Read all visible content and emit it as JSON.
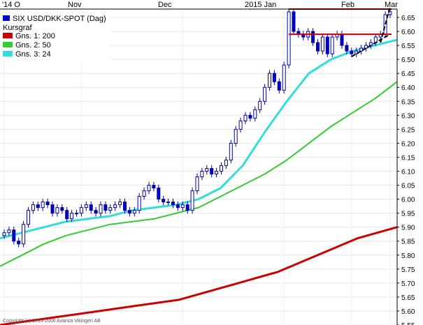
{
  "chart_data": {
    "type": "line",
    "title": "SIX USD/DKK-SPOT (Dag)",
    "legend_heading": "Kursgraf",
    "legend_placement": "top-left",
    "copyright": "Copyright (c) 1993-2006 Avanza Vikingen AB",
    "x_labels": [
      "'14 O",
      "Nov",
      "Dec",
      "2015 Jan",
      "Feb",
      "Mar"
    ],
    "ylim": [
      5.55,
      6.68
    ],
    "y_ticks": [
      "6.65",
      "6.60",
      "6.55",
      "6.50",
      "6.45",
      "6.40",
      "6.35",
      "6.30",
      "6.25",
      "6.20",
      "6.15",
      "6.10",
      "6.05",
      "6.00",
      "5.95",
      "5.90",
      "5.85",
      "5.80",
      "5.75",
      "5.70",
      "5.65",
      "5.60",
      "5.55"
    ],
    "grid": true,
    "colors": {
      "price_up": "#ffffff",
      "price_down": "#0000cc",
      "gns1": "#cc0000",
      "gns2": "#33cc33",
      "gns3": "#33dddd",
      "hline": "#cc0000",
      "trend": "#000000"
    },
    "series": [
      {
        "name": "SIX USD/DKK-SPOT (Dag)",
        "kind": "price",
        "close": [
          5.88,
          5.89,
          5.85,
          5.84,
          5.91,
          5.96,
          5.98,
          5.97,
          5.99,
          5.98,
          5.95,
          5.97,
          5.96,
          5.93,
          5.95,
          5.95,
          5.97,
          5.98,
          5.96,
          5.95,
          5.98,
          5.96,
          5.97,
          5.98,
          5.99,
          5.96,
          5.95,
          5.96,
          6.01,
          6.03,
          6.05,
          6.04,
          6.0,
          5.99,
          5.99,
          5.98,
          5.97,
          5.98,
          5.96,
          6.03,
          6.08,
          6.1,
          6.11,
          6.09,
          6.1,
          6.12,
          6.14,
          6.2,
          6.25,
          6.28,
          6.3,
          6.29,
          6.32,
          6.35,
          6.4,
          6.45,
          6.42,
          6.39,
          6.48,
          6.67,
          6.6,
          6.59,
          6.58,
          6.6,
          6.56,
          6.53,
          6.58,
          6.52,
          6.58,
          6.59,
          6.55,
          6.53,
          6.52,
          6.53,
          6.54,
          6.55,
          6.56,
          6.58,
          6.59,
          6.66,
          6.67
        ]
      },
      {
        "name": "Gns. 1: 200",
        "kind": "ma",
        "values": [
          5.55,
          5.56,
          5.57,
          5.58,
          5.59,
          5.6,
          5.61,
          5.62,
          5.63,
          5.64,
          5.66,
          5.68,
          5.7,
          5.72,
          5.74,
          5.77,
          5.8,
          5.83,
          5.86,
          5.88,
          5.9
        ]
      },
      {
        "name": "Gns. 2: 50",
        "kind": "ma",
        "values": [
          5.76,
          5.8,
          5.84,
          5.87,
          5.89,
          5.91,
          5.92,
          5.93,
          5.95,
          5.97,
          6.01,
          6.05,
          6.09,
          6.14,
          6.2,
          6.26,
          6.31,
          6.36,
          6.42
        ]
      },
      {
        "name": "Gns. 3: 24",
        "kind": "ma",
        "values": [
          5.86,
          5.88,
          5.9,
          5.92,
          5.93,
          5.94,
          5.96,
          5.97,
          5.98,
          6.0,
          6.04,
          6.12,
          6.24,
          6.35,
          6.45,
          6.5,
          6.53,
          6.55,
          6.57
        ]
      }
    ],
    "hlines": [
      6.68,
      6.59
    ],
    "trendlines": [
      {
        "from": [
          72,
          6.51
        ],
        "to": [
          80,
          6.59
        ]
      },
      {
        "from": [
          78,
          6.56
        ],
        "to": [
          80,
          6.69
        ]
      }
    ]
  }
}
